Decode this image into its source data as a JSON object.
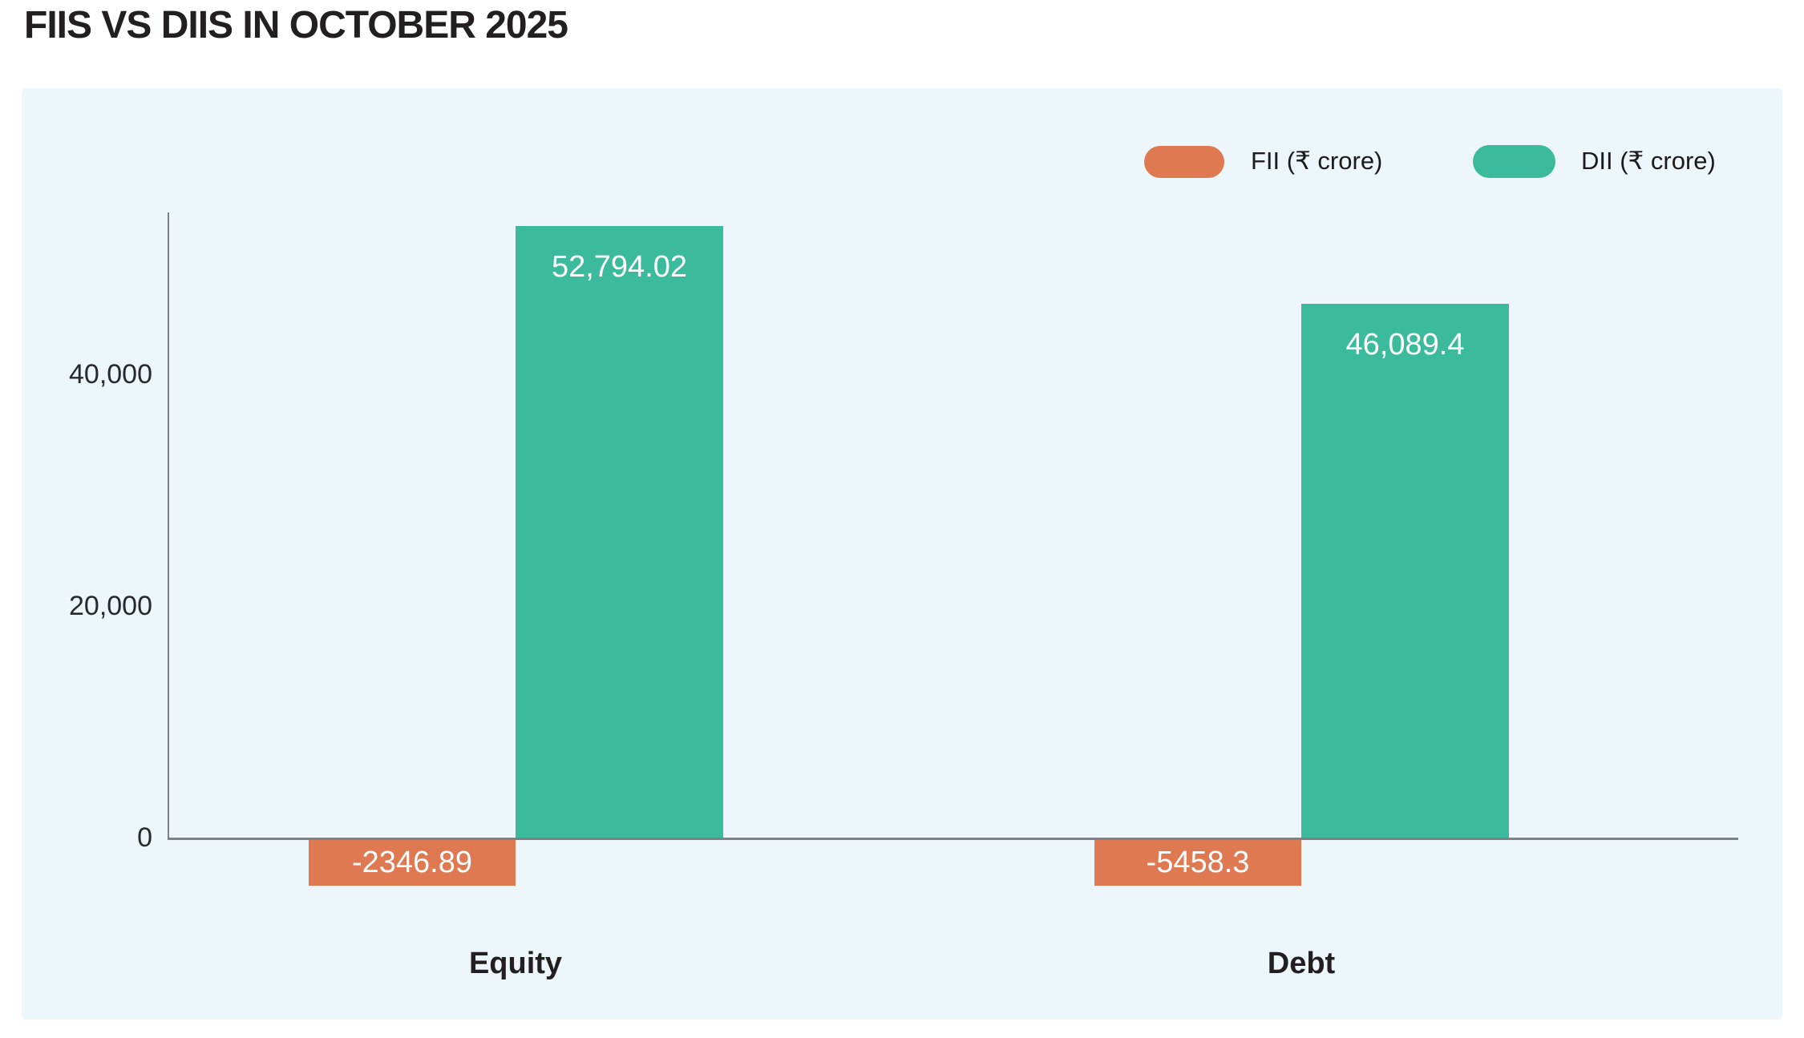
{
  "page": {
    "title": "FIIS VS DIIS IN OCTOBER 2025"
  },
  "colors": {
    "fii_orange": "#df7951",
    "dii_teal": "#3cbb9c",
    "panel_background": "#edf6fa",
    "axis_gray": "#7e8287",
    "title_text": "#231f20",
    "value_label_text": "#ffffff"
  },
  "chart_data": {
    "type": "bar",
    "title": "FIIS VS DIIS IN OCTOBER 2025",
    "categories": [
      "Equity",
      "Debt"
    ],
    "series": [
      {
        "name": "FII (₹ crore)",
        "values": [
          -2346.89,
          -5458.3
        ],
        "labels": [
          "-2346.89",
          "-5458.3"
        ],
        "color": "#df7951"
      },
      {
        "name": "DII (₹ crore)",
        "values": [
          52794.02,
          46089.4
        ],
        "labels": [
          "52,794.02",
          "46,089.4"
        ],
        "color": "#3cbb9c"
      }
    ],
    "y_ticks": [
      {
        "value": 0,
        "label": "0"
      },
      {
        "value": 20000,
        "label": "20,000"
      },
      {
        "value": 40000,
        "label": "40,000"
      }
    ],
    "ylim": [
      0,
      54000
    ],
    "xlabel": "",
    "ylabel": "",
    "grid": false,
    "legend_position": "top-right",
    "unit": "₹ crore"
  }
}
